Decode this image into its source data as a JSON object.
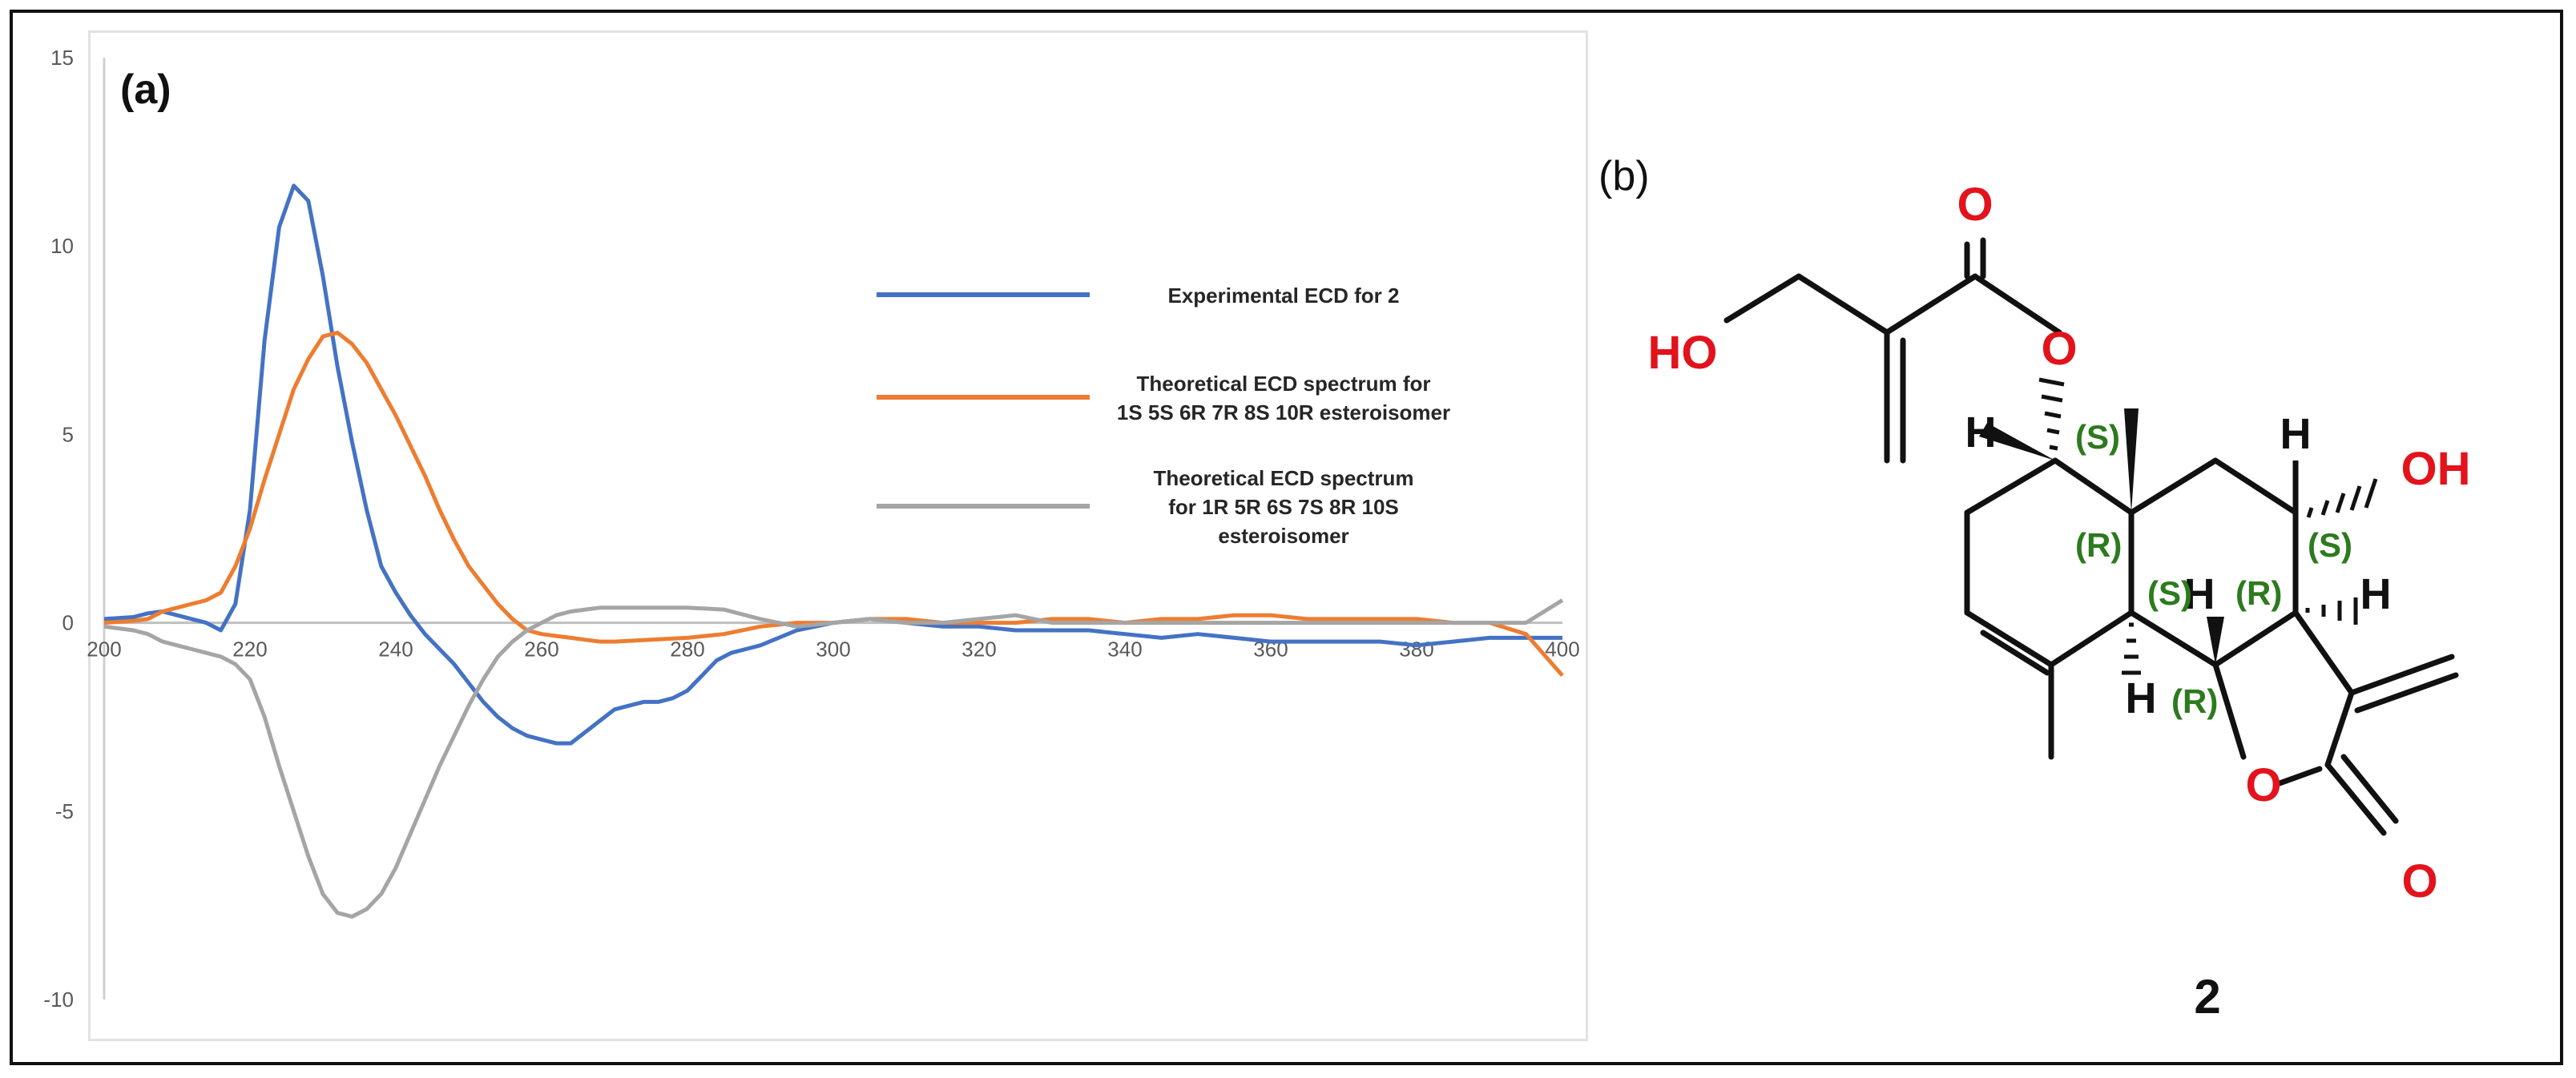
{
  "panels": {
    "a_label": "(a)",
    "b_label": "(b)"
  },
  "chart_data": {
    "type": "line",
    "title": "",
    "xlabel": "",
    "ylabel": "",
    "xlim": [
      200,
      400
    ],
    "ylim": [
      -10,
      15
    ],
    "x_ticks": [
      200,
      220,
      240,
      260,
      280,
      300,
      320,
      340,
      360,
      380,
      400
    ],
    "y_ticks": [
      -10,
      -5,
      0,
      5,
      10,
      15
    ],
    "grid": false,
    "legend_position": "right",
    "series": [
      {
        "name": "Experimental ECD for 2",
        "color": "#4472c4",
        "x": [
          200,
          204,
          206,
          208,
          210,
          212,
          214,
          216,
          218,
          220,
          222,
          224,
          226,
          228,
          230,
          232,
          234,
          236,
          238,
          240,
          242,
          244,
          246,
          248,
          250,
          252,
          254,
          256,
          258,
          260,
          262,
          264,
          266,
          268,
          270,
          272,
          274,
          276,
          278,
          280,
          282,
          284,
          286,
          288,
          290,
          295,
          300,
          305,
          310,
          315,
          320,
          325,
          330,
          335,
          340,
          345,
          350,
          355,
          360,
          365,
          370,
          375,
          380,
          385,
          390,
          395,
          400
        ],
        "y": [
          0.1,
          0.15,
          0.25,
          0.3,
          0.2,
          0.1,
          0.0,
          -0.2,
          0.5,
          3.0,
          7.5,
          10.5,
          11.6,
          11.2,
          9.2,
          6.8,
          4.8,
          3.0,
          1.5,
          0.8,
          0.2,
          -0.3,
          -0.7,
          -1.1,
          -1.6,
          -2.1,
          -2.5,
          -2.8,
          -3.0,
          -3.1,
          -3.2,
          -3.2,
          -2.9,
          -2.6,
          -2.3,
          -2.2,
          -2.1,
          -2.1,
          -2.0,
          -1.8,
          -1.4,
          -1.0,
          -0.8,
          -0.7,
          -0.6,
          -0.2,
          0.0,
          0.1,
          0.0,
          -0.1,
          -0.1,
          -0.2,
          -0.2,
          -0.2,
          -0.3,
          -0.4,
          -0.3,
          -0.4,
          -0.5,
          -0.5,
          -0.5,
          -0.5,
          -0.6,
          -0.5,
          -0.4,
          -0.4,
          -0.4
        ]
      },
      {
        "name": "Theoretical ECD spectrum for 1S 5S 6R 7R 8S 10R esteroisomer",
        "color": "#ed7d31",
        "x": [
          200,
          204,
          206,
          208,
          210,
          212,
          214,
          216,
          218,
          220,
          222,
          224,
          226,
          228,
          230,
          232,
          234,
          236,
          238,
          240,
          242,
          244,
          246,
          248,
          250,
          252,
          254,
          256,
          258,
          260,
          262,
          264,
          266,
          268,
          270,
          275,
          280,
          285,
          290,
          295,
          300,
          305,
          310,
          315,
          320,
          325,
          330,
          335,
          340,
          345,
          350,
          355,
          360,
          365,
          370,
          375,
          380,
          385,
          390,
          395,
          400
        ],
        "y": [
          0.0,
          0.05,
          0.1,
          0.3,
          0.4,
          0.5,
          0.6,
          0.8,
          1.5,
          2.5,
          3.8,
          5.0,
          6.2,
          7.0,
          7.6,
          7.7,
          7.4,
          6.9,
          6.2,
          5.5,
          4.7,
          3.9,
          3.0,
          2.2,
          1.5,
          1.0,
          0.5,
          0.1,
          -0.2,
          -0.3,
          -0.35,
          -0.4,
          -0.45,
          -0.5,
          -0.5,
          -0.45,
          -0.4,
          -0.3,
          -0.1,
          0.0,
          0.0,
          0.1,
          0.1,
          0.0,
          0.0,
          0.0,
          0.1,
          0.1,
          0.0,
          0.1,
          0.1,
          0.2,
          0.2,
          0.1,
          0.1,
          0.1,
          0.1,
          0.0,
          0.0,
          -0.3,
          -1.4
        ]
      },
      {
        "name": "Theoretical ECD spectrum for 1R 5R 6S 7S 8R 10S esteroisomer",
        "color": "#a5a5a5",
        "x": [
          200,
          204,
          206,
          208,
          210,
          212,
          214,
          216,
          218,
          220,
          222,
          224,
          226,
          228,
          230,
          232,
          234,
          236,
          238,
          240,
          242,
          244,
          246,
          248,
          250,
          252,
          254,
          256,
          258,
          260,
          262,
          264,
          266,
          268,
          270,
          275,
          280,
          285,
          290,
          295,
          300,
          305,
          310,
          315,
          320,
          325,
          330,
          335,
          340,
          345,
          350,
          355,
          360,
          365,
          370,
          375,
          380,
          385,
          390,
          395,
          400
        ],
        "y": [
          -0.1,
          -0.2,
          -0.3,
          -0.5,
          -0.6,
          -0.7,
          -0.8,
          -0.9,
          -1.1,
          -1.5,
          -2.5,
          -3.8,
          -5.0,
          -6.2,
          -7.2,
          -7.7,
          -7.8,
          -7.6,
          -7.2,
          -6.5,
          -5.6,
          -4.7,
          -3.8,
          -3.0,
          -2.2,
          -1.5,
          -0.9,
          -0.5,
          -0.2,
          0.0,
          0.2,
          0.3,
          0.35,
          0.4,
          0.4,
          0.4,
          0.4,
          0.35,
          0.1,
          -0.1,
          0.0,
          0.1,
          0.0,
          0.0,
          0.1,
          0.2,
          0.0,
          0.0,
          0.0,
          0.0,
          0.0,
          0.0,
          0.0,
          0.0,
          0.0,
          0.0,
          0.0,
          0.0,
          0.0,
          0.0,
          0.6
        ]
      }
    ],
    "legend": [
      {
        "lines": [
          "Experimental ECD for 2"
        ]
      },
      {
        "lines": [
          "Theoretical ECD spectrum for",
          "1S 5S 6R 7R 8S 10R esteroisomer"
        ]
      },
      {
        "lines": [
          "Theoretical ECD spectrum",
          "for 1R 5R 6S 7S 8R 10S",
          "esteroisomer"
        ]
      }
    ]
  },
  "molecule": {
    "atoms": {
      "o_carbonyl_ester": "O",
      "o_ester": "O",
      "ho_left": "HO",
      "oh_right": "OH",
      "o_ring": "O",
      "o_lactone_carbonyl": "O"
    },
    "hydrogens": {
      "h_c1": "H",
      "h_c7": "H",
      "h_c8": "H",
      "h_c6": "H",
      "h_c5": "H"
    },
    "stereo": {
      "c1": "(S)",
      "c10": "(R)",
      "c7": "(S)",
      "c5": "(S)",
      "c8": "(R)",
      "c6": "(R)"
    },
    "compound_number": "2",
    "colors": {
      "heteroatom": "#e2131c",
      "stereo_label": "#2d7a1f"
    }
  }
}
